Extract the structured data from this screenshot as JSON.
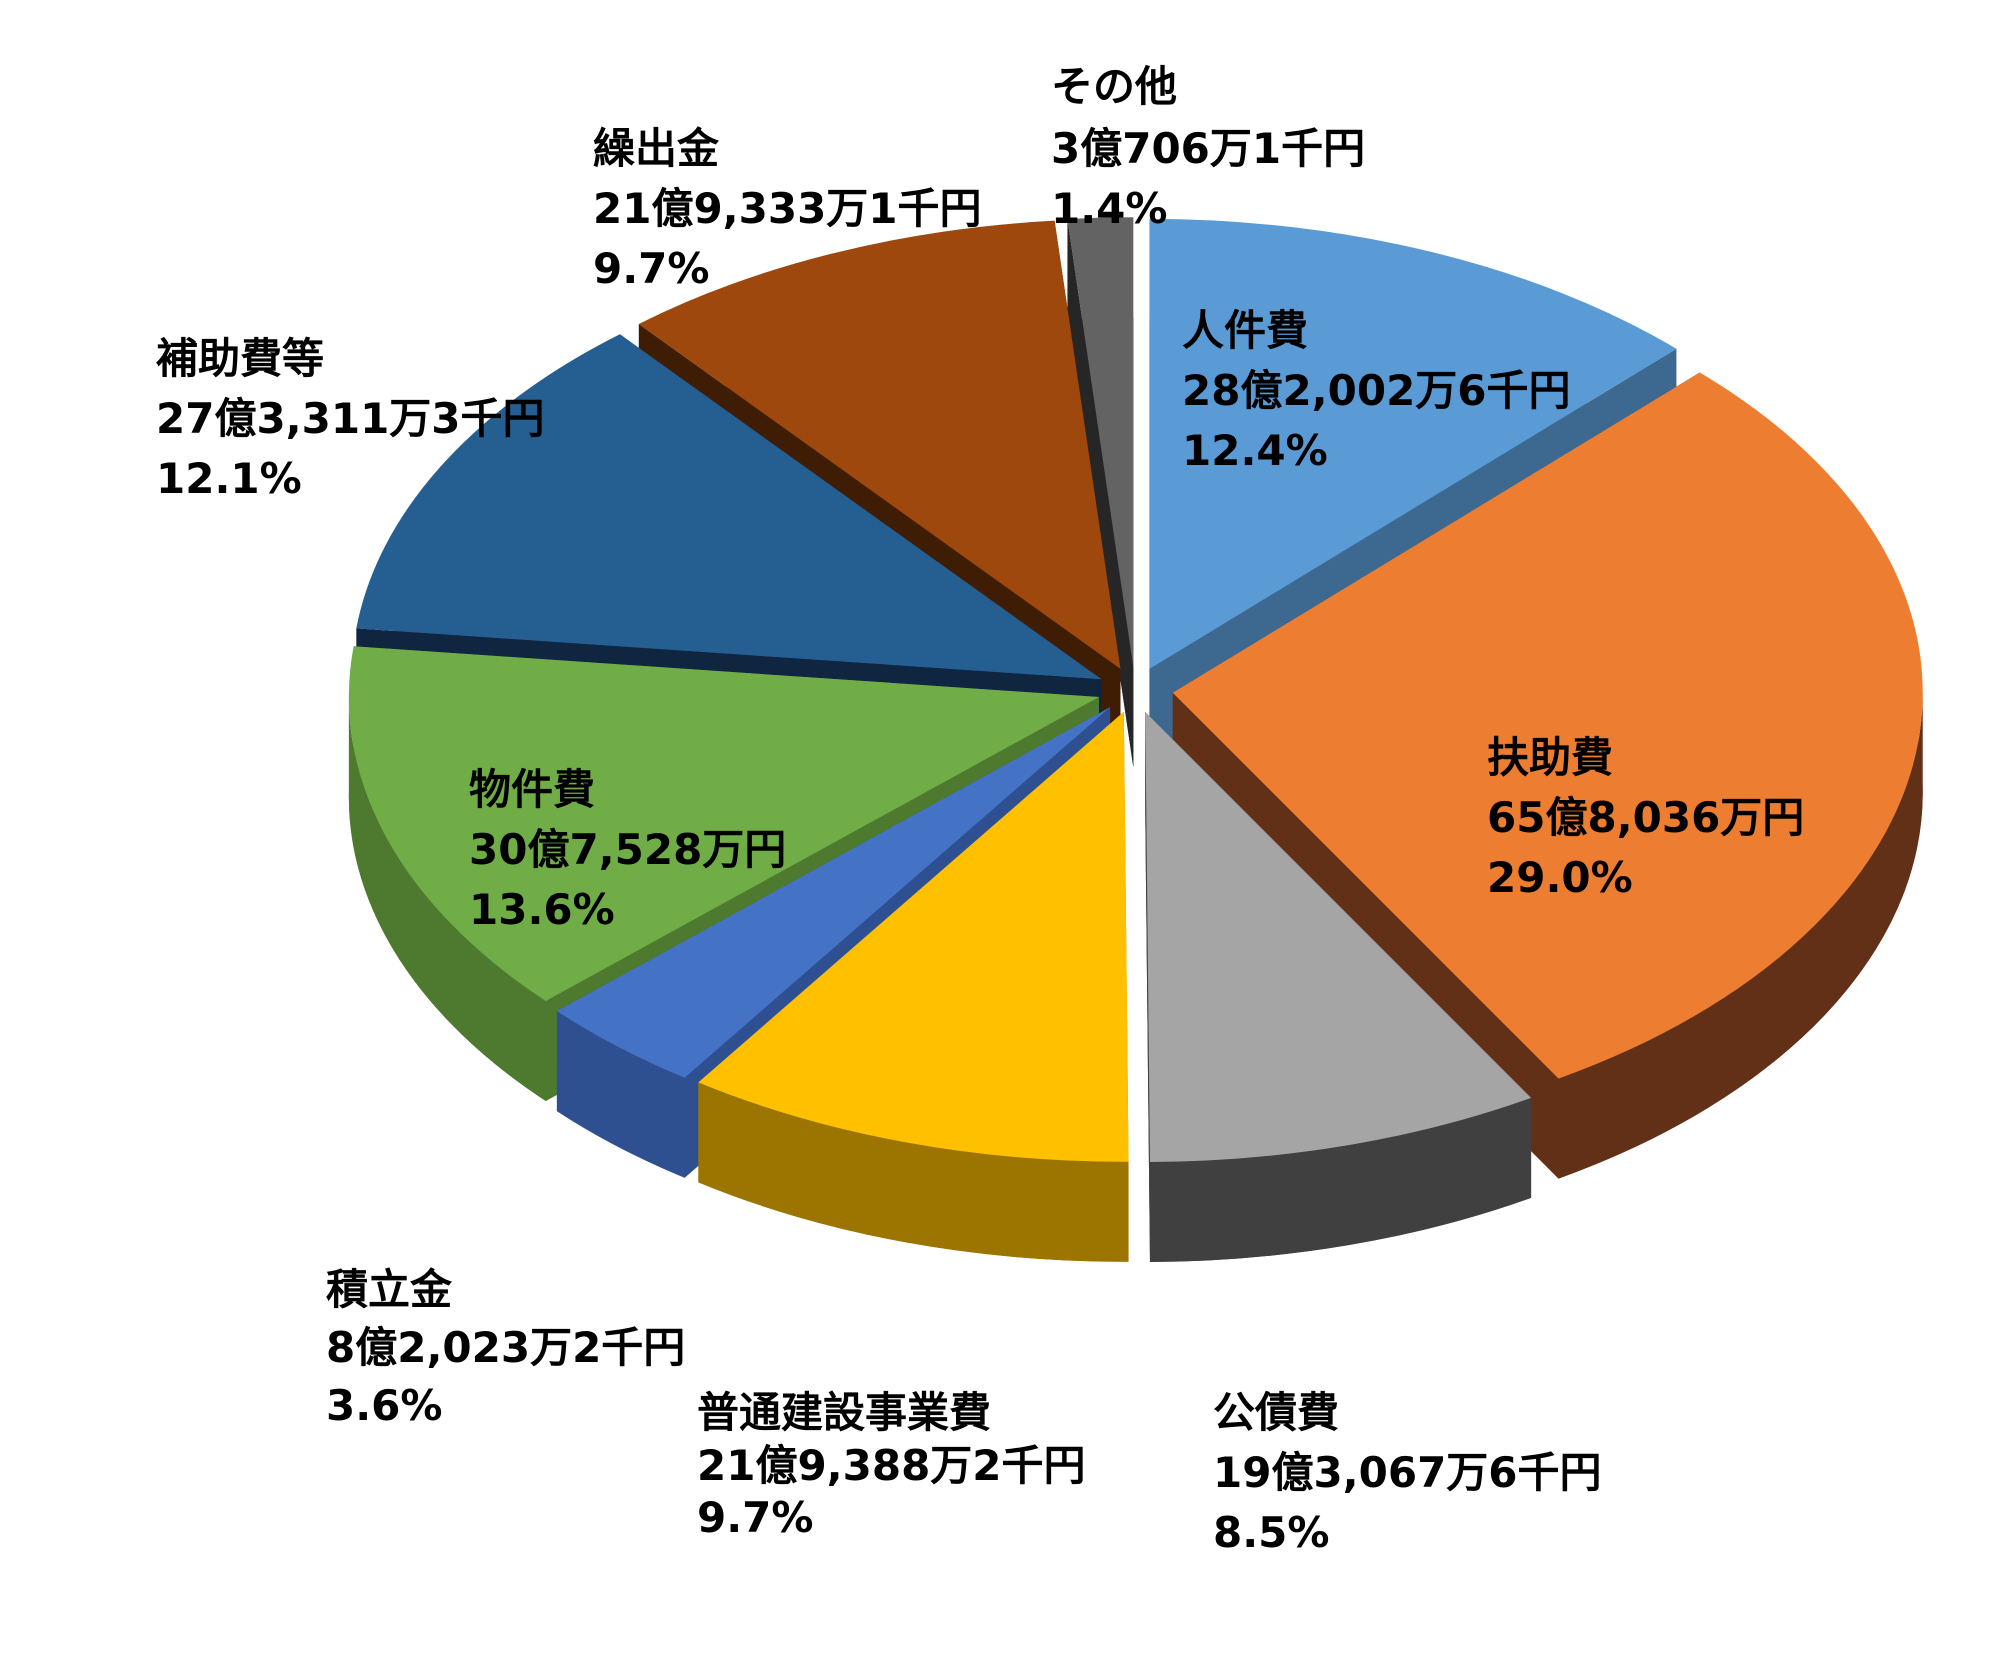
{
  "chart_data": {
    "type": "pie",
    "slices": [
      {
        "name": "人件費",
        "amount": "28億2,002万6千円",
        "percent_label": "12.4%",
        "value": 12.4,
        "color": "#5B9BD5",
        "side": "#3D6990"
      },
      {
        "name": "扶助費",
        "amount": "65億8,036万円",
        "percent_label": "29.0%",
        "value": 29.0,
        "color": "#ED7D31",
        "side": "#623016"
      },
      {
        "name": "公債費",
        "amount": "19億3,067万6千円",
        "percent_label": "8.5%",
        "value": 8.5,
        "color": "#A5A5A5",
        "side": "#404040"
      },
      {
        "name": "普通建設事業費",
        "amount": "21億9,388万2千円",
        "percent_label": "9.7%",
        "value": 9.7,
        "color": "#FFC000",
        "side": "#9C7400"
      },
      {
        "name": "積立金",
        "amount": "8億2,023万2千円",
        "percent_label": "3.6%",
        "value": 3.6,
        "color": "#4472C4",
        "side": "#2F5090"
      },
      {
        "name": "物件費",
        "amount": "30億7,528万円",
        "percent_label": "13.6%",
        "value": 13.6,
        "color": "#70AD47",
        "side": "#4E7A30"
      },
      {
        "name": "補助費等",
        "amount": "27億3,311万3千円",
        "percent_label": "12.1%",
        "value": 12.1,
        "color": "#255E91",
        "side": "#10253F"
      },
      {
        "name": "繰出金",
        "amount": "21億9,333万1千円",
        "percent_label": "9.7%",
        "value": 9.7,
        "color": "#9E480E",
        "side": "#3F1D05"
      },
      {
        "name": "その他",
        "amount": "3億706万1千円",
        "percent_label": "1.4%",
        "value": 1.4,
        "color": "#636363",
        "side": "#262626"
      }
    ]
  }
}
